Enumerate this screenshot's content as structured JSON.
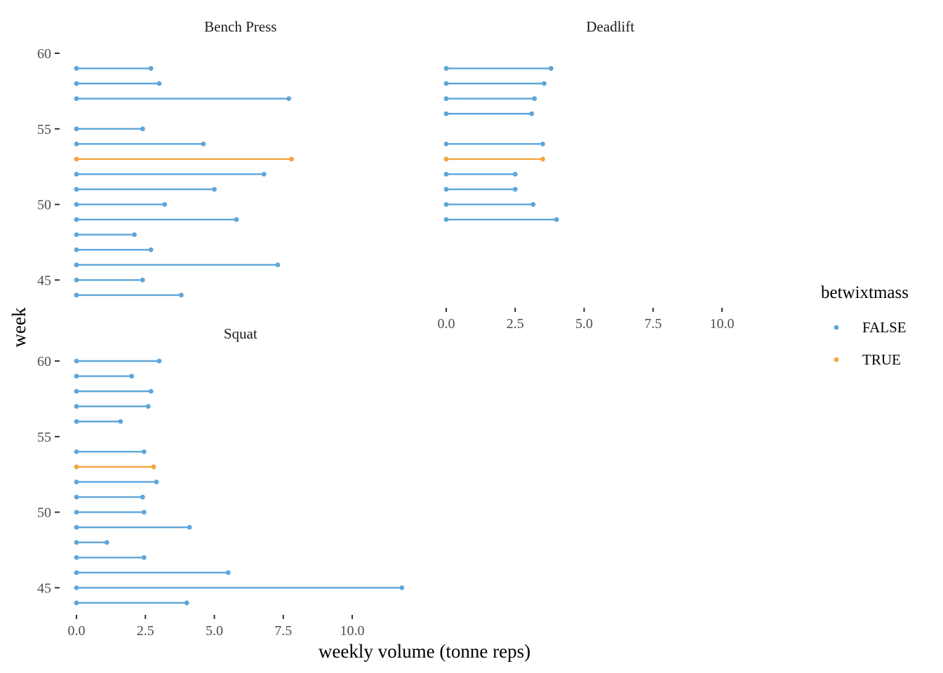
{
  "chart_data": {
    "type": "lollipop",
    "orientation": "horizontal",
    "xlabel": "weekly volume (tonne reps)",
    "ylabel": "week",
    "xlim": [
      0,
      12
    ],
    "ylim": [
      43.5,
      60.5
    ],
    "x_ticks": [
      0,
      2.5,
      5,
      7.5,
      10
    ],
    "x_tick_labels": [
      "0.0",
      "2.5",
      "5.0",
      "7.5",
      "10.0"
    ],
    "y_ticks": [
      45,
      50,
      55,
      60
    ],
    "y_tick_labels": [
      "45",
      "50",
      "55",
      "60"
    ],
    "grid": false,
    "legend": {
      "title": "betwixtmass",
      "position": "right",
      "entries": [
        {
          "label": "FALSE",
          "color": "#5DA5DA"
        },
        {
          "label": "TRUE",
          "color": "#F5A53F"
        }
      ]
    },
    "colors": {
      "FALSE": "#5DA5DA",
      "TRUE": "#F5A53F"
    },
    "panels": [
      {
        "title": "Bench Press",
        "points": [
          {
            "week": 59,
            "value": 2.7,
            "betwixtmass": "FALSE"
          },
          {
            "week": 58,
            "value": 3.0,
            "betwixtmass": "FALSE"
          },
          {
            "week": 57,
            "value": 7.7,
            "betwixtmass": "FALSE"
          },
          {
            "week": 55,
            "value": 2.4,
            "betwixtmass": "FALSE"
          },
          {
            "week": 54,
            "value": 4.6,
            "betwixtmass": "FALSE"
          },
          {
            "week": 53,
            "value": 7.8,
            "betwixtmass": "TRUE"
          },
          {
            "week": 52,
            "value": 6.8,
            "betwixtmass": "FALSE"
          },
          {
            "week": 51,
            "value": 5.0,
            "betwixtmass": "FALSE"
          },
          {
            "week": 50,
            "value": 3.2,
            "betwixtmass": "FALSE"
          },
          {
            "week": 49,
            "value": 5.8,
            "betwixtmass": "FALSE"
          },
          {
            "week": 48,
            "value": 2.1,
            "betwixtmass": "FALSE"
          },
          {
            "week": 47,
            "value": 2.7,
            "betwixtmass": "FALSE"
          },
          {
            "week": 46,
            "value": 7.3,
            "betwixtmass": "FALSE"
          },
          {
            "week": 45,
            "value": 2.4,
            "betwixtmass": "FALSE"
          },
          {
            "week": 44,
            "value": 3.8,
            "betwixtmass": "FALSE"
          }
        ]
      },
      {
        "title": "Deadlift",
        "points": [
          {
            "week": 59,
            "value": 3.8,
            "betwixtmass": "FALSE"
          },
          {
            "week": 58,
            "value": 3.55,
            "betwixtmass": "FALSE"
          },
          {
            "week": 57,
            "value": 3.2,
            "betwixtmass": "FALSE"
          },
          {
            "week": 56,
            "value": 3.1,
            "betwixtmass": "FALSE"
          },
          {
            "week": 54,
            "value": 3.5,
            "betwixtmass": "FALSE"
          },
          {
            "week": 53,
            "value": 3.5,
            "betwixtmass": "TRUE"
          },
          {
            "week": 52,
            "value": 2.5,
            "betwixtmass": "FALSE"
          },
          {
            "week": 51,
            "value": 2.5,
            "betwixtmass": "FALSE"
          },
          {
            "week": 50,
            "value": 3.15,
            "betwixtmass": "FALSE"
          },
          {
            "week": 49,
            "value": 4.0,
            "betwixtmass": "FALSE"
          }
        ]
      },
      {
        "title": "Squat",
        "points": [
          {
            "week": 60,
            "value": 3.0,
            "betwixtmass": "FALSE"
          },
          {
            "week": 59,
            "value": 2.0,
            "betwixtmass": "FALSE"
          },
          {
            "week": 58,
            "value": 2.7,
            "betwixtmass": "FALSE"
          },
          {
            "week": 57,
            "value": 2.6,
            "betwixtmass": "FALSE"
          },
          {
            "week": 56,
            "value": 1.6,
            "betwixtmass": "FALSE"
          },
          {
            "week": 54,
            "value": 2.45,
            "betwixtmass": "FALSE"
          },
          {
            "week": 53,
            "value": 2.8,
            "betwixtmass": "TRUE"
          },
          {
            "week": 52,
            "value": 2.9,
            "betwixtmass": "FALSE"
          },
          {
            "week": 51,
            "value": 2.4,
            "betwixtmass": "FALSE"
          },
          {
            "week": 50,
            "value": 2.45,
            "betwixtmass": "FALSE"
          },
          {
            "week": 49,
            "value": 4.1,
            "betwixtmass": "FALSE"
          },
          {
            "week": 48,
            "value": 1.1,
            "betwixtmass": "FALSE"
          },
          {
            "week": 47,
            "value": 2.45,
            "betwixtmass": "FALSE"
          },
          {
            "week": 46,
            "value": 5.5,
            "betwixtmass": "FALSE"
          },
          {
            "week": 45,
            "value": 11.8,
            "betwixtmass": "FALSE"
          },
          {
            "week": 44,
            "value": 4.0,
            "betwixtmass": "FALSE"
          }
        ]
      }
    ]
  }
}
